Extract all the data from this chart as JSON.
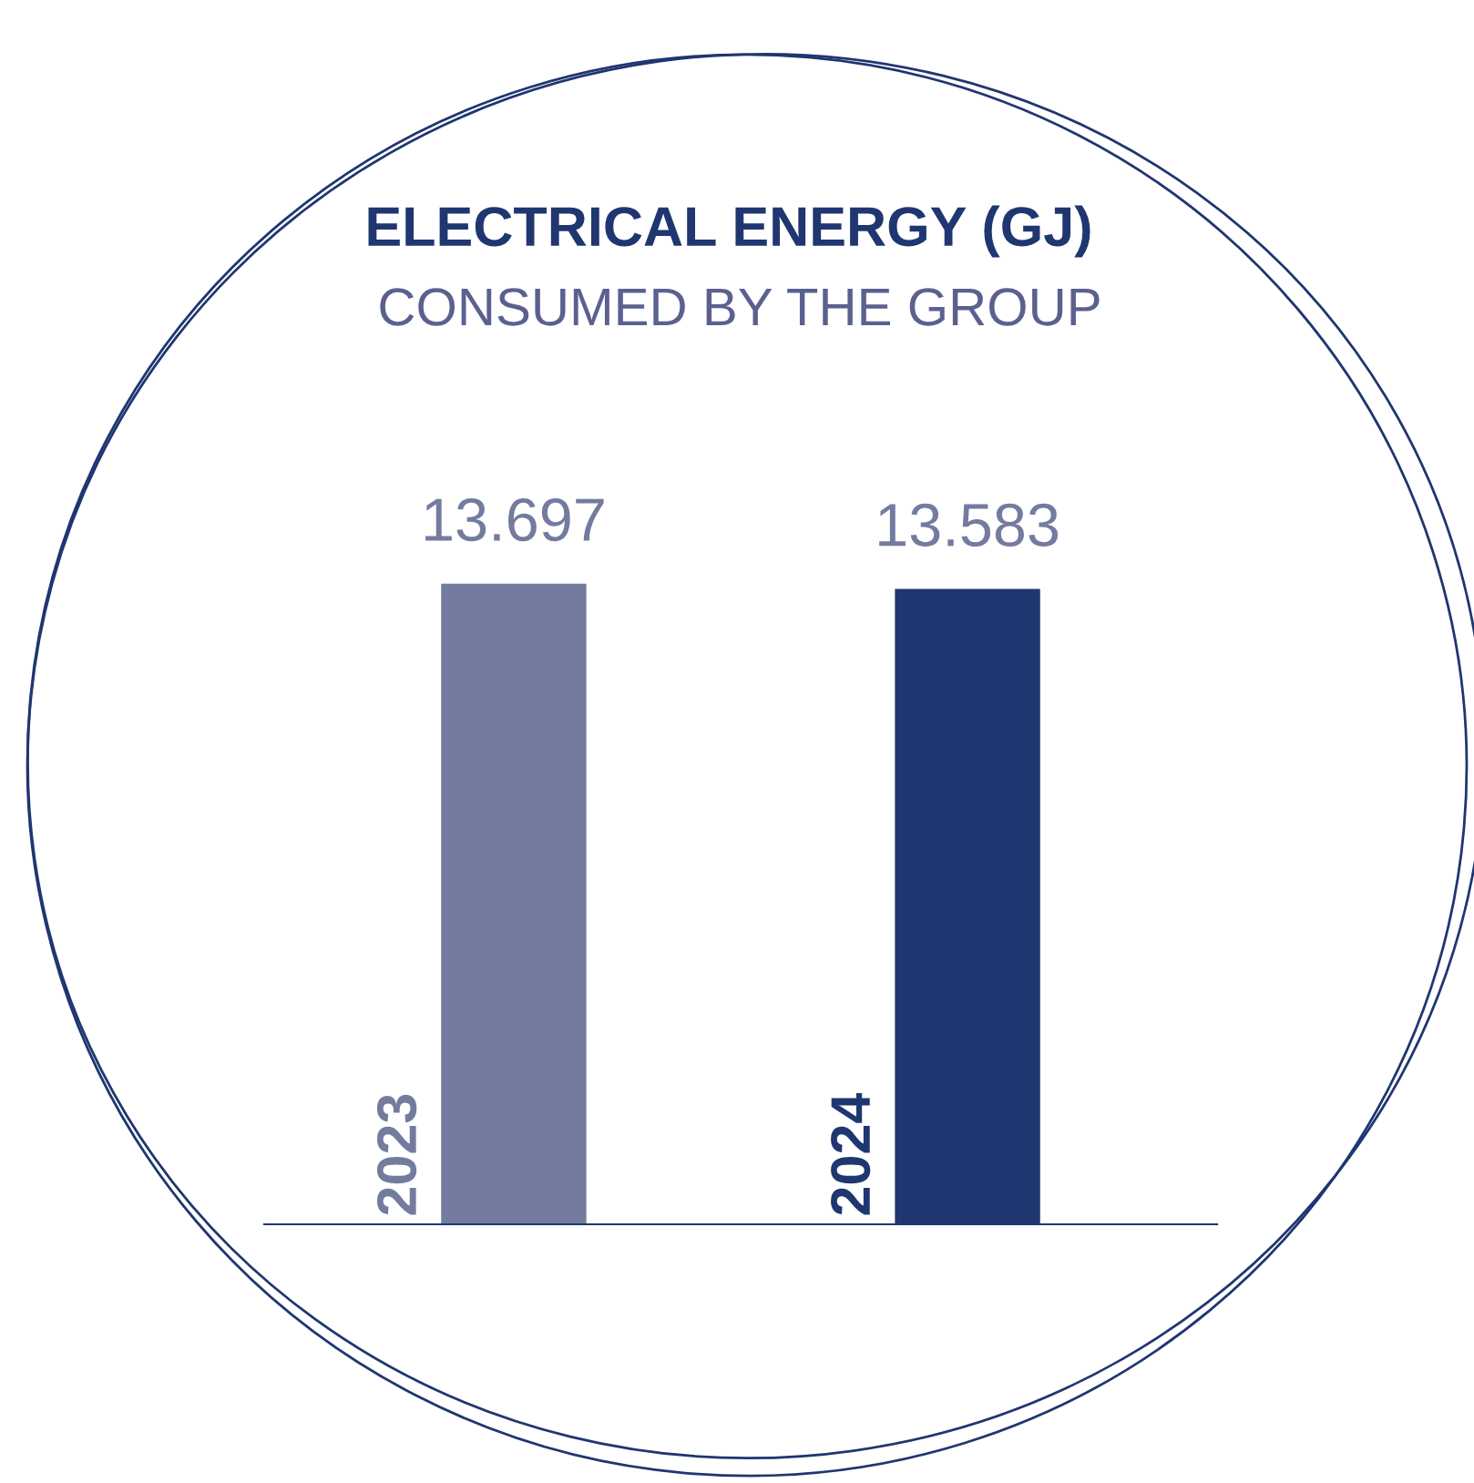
{
  "chart_data": {
    "type": "bar",
    "title": "ELECTRICAL ENERGY (GJ)",
    "subtitle": "CONSUMED BY THE GROUP",
    "categories": [
      "2023",
      "2024"
    ],
    "values": [
      13.697,
      13.583
    ],
    "colors": [
      "#737b9f",
      "#1f3670"
    ],
    "data_labels": true
  }
}
